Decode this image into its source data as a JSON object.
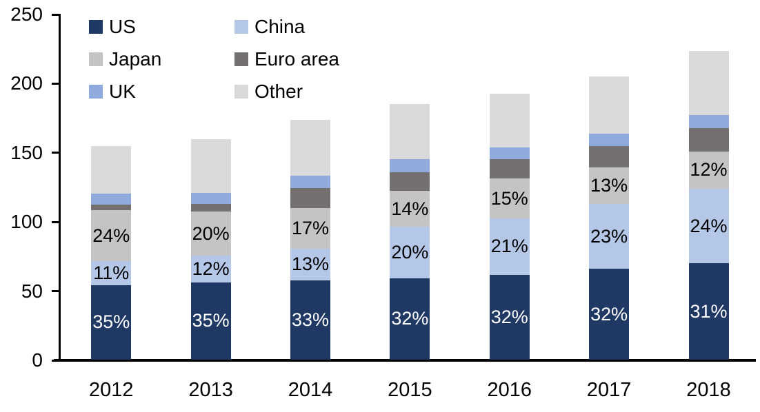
{
  "chart_data": {
    "type": "bar",
    "stacked": true,
    "title": "",
    "xlabel": "",
    "ylabel": "",
    "categories": [
      "2012",
      "2013",
      "2014",
      "2015",
      "2016",
      "2017",
      "2018"
    ],
    "series": [
      {
        "name": "US",
        "color": "#1F3864",
        "values": [
          54,
          56,
          57.5,
          59,
          61.5,
          65.5,
          69.5
        ],
        "pct_labels": [
          "35%",
          "35%",
          "33%",
          "32%",
          "32%",
          "32%",
          "31%"
        ],
        "pct_label_color": "#FFFFFF"
      },
      {
        "name": "China",
        "color": "#B4C7E7",
        "values": [
          17,
          19,
          22.5,
          37,
          40.5,
          47,
          54
        ],
        "pct_labels": [
          "11%",
          "12%",
          "13%",
          "20%",
          "21%",
          "23%",
          "24%"
        ],
        "pct_label_color": "#000000"
      },
      {
        "name": "Japan",
        "color": "#C4C4C4",
        "values": [
          37,
          32,
          29.5,
          26,
          29,
          26.5,
          27
        ],
        "pct_labels": [
          "24%",
          "20%",
          "17%",
          "14%",
          "15%",
          "13%",
          "12%"
        ],
        "pct_label_color": "#000000"
      },
      {
        "name": "Euro area",
        "color": "#757070",
        "values": [
          4,
          5.5,
          14.5,
          13.5,
          14,
          15.5,
          17
        ],
        "pct_labels": null,
        "pct_label_color": null
      },
      {
        "name": "UK",
        "color": "#8FAADC",
        "values": [
          8,
          8,
          9,
          9.5,
          8.5,
          9,
          9.5
        ],
        "pct_labels": null,
        "pct_label_color": null
      },
      {
        "name": "Other",
        "color": "#DADADA",
        "values": [
          34.5,
          39,
          40.5,
          40,
          38.5,
          41,
          46
        ],
        "pct_labels": null,
        "pct_label_color": null
      }
    ],
    "totals": [
      154.5,
      159.5,
      173.5,
      185,
      192,
      204.5,
      223
    ],
    "y_axis": {
      "ticks": [
        0,
        50,
        100,
        150,
        200,
        250
      ],
      "ylim": [
        0,
        250
      ],
      "grid": false
    },
    "legend": {
      "position": "top-left",
      "display_order": [
        "US",
        "Japan",
        "UK",
        "China",
        "Euro area",
        "Other"
      ]
    }
  }
}
